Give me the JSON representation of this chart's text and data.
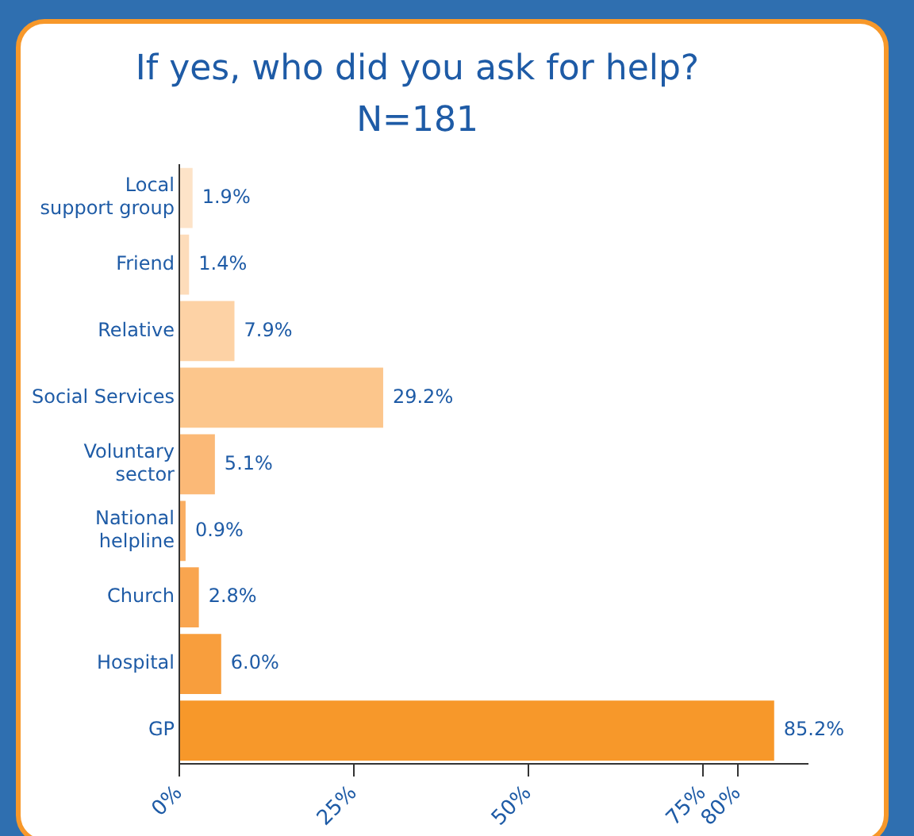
{
  "chart_data": {
    "type": "bar",
    "orientation": "horizontal",
    "title": "If yes, who did you ask for help?",
    "subtitle": "N=181",
    "categories": [
      "Local support group",
      "Friend",
      "Relative",
      "Social Services",
      "Voluntary sector",
      "National helpline",
      "Church",
      "Hospital",
      "GP"
    ],
    "values": [
      1.9,
      1.4,
      7.9,
      29.2,
      5.1,
      0.9,
      2.8,
      6.0,
      85.2
    ],
    "value_labels": [
      "1.9%",
      "1.4%",
      "7.9%",
      "29.2%",
      "5.1%",
      "0.9%",
      "2.8%",
      "6.0%",
      "85.2%"
    ],
    "colors": [
      "#fde3c8",
      "#fddcba",
      "#fdd2a5",
      "#fcc68c",
      "#fbb977",
      "#faae62",
      "#f9a54f",
      "#f89e3d",
      "#f7982a"
    ],
    "xlim": [
      0,
      90
    ],
    "xticks": [
      {
        "value": 0,
        "label": "0%"
      },
      {
        "value": 25,
        "label": "25%"
      },
      {
        "value": 50,
        "label": "50%"
      },
      {
        "value": 75,
        "label": "75%"
      },
      {
        "value": 80,
        "label": "80%"
      }
    ],
    "grid": false,
    "legend": false
  }
}
